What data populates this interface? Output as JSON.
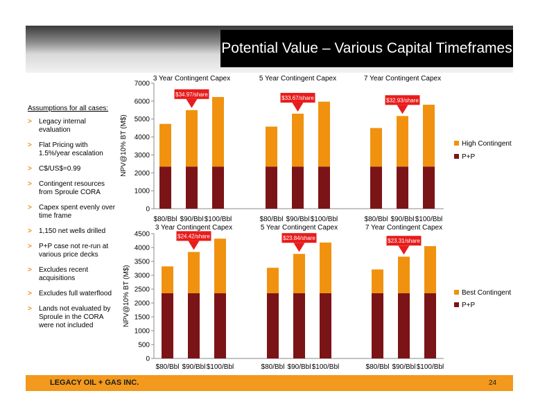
{
  "header": {
    "title": "Potential Value – Various Capital Timeframes"
  },
  "assumptions": {
    "title": "Assumptions for all cases:",
    "items": [
      "Legacy internal evaluation",
      "Flat Pricing with 1.5%/year escalation",
      "C$/US$=0.99",
      "Contingent resources from Sproule CORA",
      "Capex spent evenly over time frame",
      "1,150 net wells drilled",
      "P+P case not re-run at various price decks",
      "Excludes recent acquisitions",
      "Excludes full waterflood",
      "Lands not evaluated by Sproule in the CORA were not included"
    ]
  },
  "footer": {
    "company": "LEGACY OIL + GAS INC.",
    "page": "24"
  },
  "colors": {
    "pp": "#7b1416",
    "contingent": "#f0920f",
    "callout": "#e81c1c",
    "footer": "#f2991e"
  },
  "chart_data": [
    {
      "type": "bar",
      "stacked": true,
      "ylabel": "NPV@10% BT (M$)",
      "ylim": [
        0,
        7000
      ],
      "yticks": [
        0,
        1000,
        2000,
        3000,
        4000,
        5000,
        6000,
        7000
      ],
      "groups": [
        "3 Year Contingent Capex",
        "5 Year Contingent Capex",
        "7 Year Contingent Capex"
      ],
      "categories": [
        "$80/Bbl",
        "$90/Bbl",
        "$100/Bbl"
      ],
      "series": [
        {
          "name": "P+P",
          "values": [
            [
              2350,
              2350,
              2350
            ],
            [
              2350,
              2350,
              2350
            ],
            [
              2350,
              2350,
              2350
            ]
          ]
        },
        {
          "name": "High Contingent",
          "values": [
            [
              2380,
              3150,
              3880
            ],
            [
              2230,
              2950,
              3620
            ],
            [
              2150,
              2820,
              3450
            ]
          ]
        }
      ],
      "callouts": [
        "$34.97/share",
        "$33.67/share",
        "$32.93/share"
      ],
      "legend_position": "right"
    },
    {
      "type": "bar",
      "stacked": true,
      "ylabel": "NPV@10% BT (M$)",
      "ylim": [
        0,
        4500
      ],
      "yticks": [
        0,
        500,
        1000,
        1500,
        2000,
        2500,
        3000,
        3500,
        4000,
        4500
      ],
      "groups": [
        "3 Year Contingent Capex",
        "5 Year Contingent Capex",
        "7 Year Contingent Capex"
      ],
      "categories": [
        "$80/Bbl",
        "$90/Bbl",
        "$100/Bbl"
      ],
      "series": [
        {
          "name": "P+P",
          "values": [
            [
              2350,
              2350,
              2350
            ],
            [
              2350,
              2350,
              2350
            ],
            [
              2350,
              2350,
              2350
            ]
          ]
        },
        {
          "name": "Best Contingent",
          "values": [
            [
              970,
              1490,
              1970
            ],
            [
              920,
              1420,
              1830
            ],
            [
              860,
              1320,
              1700
            ]
          ]
        }
      ],
      "callouts": [
        "$24.42/share",
        "$23.84/share",
        "$23.31/share"
      ],
      "legend_position": "right"
    }
  ]
}
